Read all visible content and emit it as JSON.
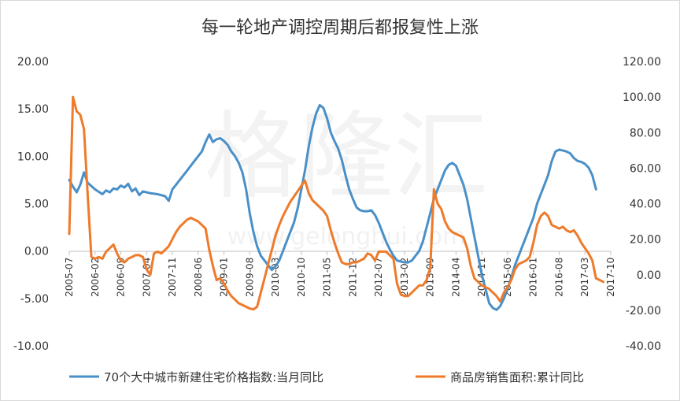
{
  "chart_data": {
    "type": "line",
    "title": "每一轮地产调控周期后都报复性上涨",
    "watermark": {
      "main": "格隆汇",
      "url": "www.gelonghui.com"
    },
    "x_ticks": [
      "2005-07",
      "2006-02",
      "2006-09",
      "2007-04",
      "2007-11",
      "2008-06",
      "2009-01",
      "2009-08",
      "2010-03",
      "2010-10",
      "2011-05",
      "2011-12",
      "2012-07",
      "2013-02",
      "2013-09",
      "2014-04",
      "2014-11",
      "2015-06",
      "2016-01",
      "2016-08",
      "2017-03",
      "2017-10"
    ],
    "y_left": {
      "min": -10,
      "max": 20,
      "step": 5,
      "ticks": [
        "20.00",
        "15.00",
        "10.00",
        "5.00",
        "0.00",
        "-5.00",
        "-10.00"
      ]
    },
    "y_right": {
      "min": -40,
      "max": 120,
      "step": 20,
      "ticks": [
        "120.00",
        "100.00",
        "80.00",
        "60.00",
        "40.00",
        "20.00",
        "0.00",
        "-20.00",
        "-40.00"
      ]
    },
    "series": [
      {
        "name": "70个大中城市新建住宅价格指数:当月同比",
        "axis": "left",
        "color": "#4a90c8",
        "points": [
          [
            0,
            7.5
          ],
          [
            1,
            6.8
          ],
          [
            2,
            6.2
          ],
          [
            3,
            7.0
          ],
          [
            4,
            8.3
          ],
          [
            5,
            7.2
          ],
          [
            7,
            6.5
          ],
          [
            9,
            6.0
          ],
          [
            10,
            6.4
          ],
          [
            11,
            6.2
          ],
          [
            12,
            6.6
          ],
          [
            13,
            6.5
          ],
          [
            14,
            6.9
          ],
          [
            15,
            6.7
          ],
          [
            16,
            7.1
          ],
          [
            17,
            6.3
          ],
          [
            18,
            6.6
          ],
          [
            19,
            5.9
          ],
          [
            20,
            6.3
          ],
          [
            22,
            6.1
          ],
          [
            24,
            6.0
          ],
          [
            26,
            5.8
          ],
          [
            27,
            5.3
          ],
          [
            28,
            6.5
          ],
          [
            30,
            7.5
          ],
          [
            32,
            8.5
          ],
          [
            34,
            9.5
          ],
          [
            36,
            10.5
          ],
          [
            37,
            11.5
          ],
          [
            38,
            12.3
          ],
          [
            39,
            11.5
          ],
          [
            40,
            11.8
          ],
          [
            41,
            11.9
          ],
          [
            42,
            11.6
          ],
          [
            43,
            11.2
          ],
          [
            44,
            10.5
          ],
          [
            45,
            10.0
          ],
          [
            46,
            9.3
          ],
          [
            47,
            8.3
          ],
          [
            48,
            6.5
          ],
          [
            49,
            4.0
          ],
          [
            50,
            2.0
          ],
          [
            51,
            0.5
          ],
          [
            52,
            -0.5
          ],
          [
            53,
            -1.0
          ],
          [
            54,
            -1.5
          ],
          [
            55,
            -2.0
          ],
          [
            56,
            -1.6
          ],
          [
            57,
            -1.0
          ],
          [
            58,
            0.0
          ],
          [
            59,
            1.0
          ],
          [
            60,
            2.0
          ],
          [
            61,
            3.0
          ],
          [
            62,
            4.5
          ],
          [
            63,
            6.5
          ],
          [
            64,
            8.5
          ],
          [
            65,
            11.0
          ],
          [
            66,
            13.0
          ],
          [
            67,
            14.5
          ],
          [
            68,
            15.4
          ],
          [
            69,
            15.1
          ],
          [
            70,
            14.0
          ],
          [
            71,
            12.5
          ],
          [
            72,
            11.6
          ],
          [
            73,
            10.8
          ],
          [
            74,
            9.6
          ],
          [
            75,
            8.0
          ],
          [
            76,
            6.5
          ],
          [
            77,
            5.5
          ],
          [
            78,
            4.6
          ],
          [
            79,
            4.3
          ],
          [
            80,
            4.2
          ],
          [
            81,
            4.2
          ],
          [
            82,
            4.3
          ],
          [
            83,
            3.8
          ],
          [
            84,
            3.0
          ],
          [
            85,
            2.0
          ],
          [
            86,
            1.0
          ],
          [
            87,
            0.2
          ],
          [
            88,
            -0.5
          ],
          [
            89,
            -1.0
          ],
          [
            90,
            -1.1
          ],
          [
            91,
            -1.2
          ],
          [
            92,
            -1.2
          ],
          [
            93,
            -1.0
          ],
          [
            94,
            -0.5
          ],
          [
            95,
            0.0
          ],
          [
            96,
            1.0
          ],
          [
            97,
            2.5
          ],
          [
            98,
            4.0
          ],
          [
            99,
            5.5
          ],
          [
            100,
            6.5
          ],
          [
            101,
            7.5
          ],
          [
            102,
            8.5
          ],
          [
            103,
            9.1
          ],
          [
            104,
            9.3
          ],
          [
            105,
            9.0
          ],
          [
            106,
            8.0
          ],
          [
            107,
            7.0
          ],
          [
            108,
            5.5
          ],
          [
            109,
            3.5
          ],
          [
            110,
            1.5
          ],
          [
            111,
            -0.5
          ],
          [
            112,
            -2.5
          ],
          [
            113,
            -4.0
          ],
          [
            114,
            -5.5
          ],
          [
            115,
            -6.0
          ],
          [
            116,
            -6.2
          ],
          [
            117,
            -5.8
          ],
          [
            118,
            -5.0
          ],
          [
            119,
            -4.0
          ],
          [
            120,
            -2.8
          ],
          [
            121,
            -1.5
          ],
          [
            122,
            -0.5
          ],
          [
            123,
            0.5
          ],
          [
            124,
            1.5
          ],
          [
            125,
            2.5
          ],
          [
            126,
            3.5
          ],
          [
            127,
            5.0
          ],
          [
            128,
            6.0
          ],
          [
            129,
            7.0
          ],
          [
            130,
            8.0
          ],
          [
            131,
            9.5
          ],
          [
            132,
            10.5
          ],
          [
            133,
            10.7
          ],
          [
            134,
            10.6
          ],
          [
            135,
            10.5
          ],
          [
            136,
            10.3
          ],
          [
            137,
            9.8
          ],
          [
            138,
            9.5
          ],
          [
            139,
            9.4
          ],
          [
            140,
            9.2
          ],
          [
            141,
            8.8
          ],
          [
            142,
            8.0
          ],
          [
            143,
            6.5
          ]
        ]
      },
      {
        "name": "商品房销售面积:累计同比",
        "axis": "right",
        "color": "#ee7a2a",
        "points": [
          [
            0,
            23
          ],
          [
            1,
            100
          ],
          [
            2,
            92
          ],
          [
            3,
            90
          ],
          [
            4,
            82
          ],
          [
            5,
            45
          ],
          [
            6,
            10
          ],
          [
            7,
            9
          ],
          [
            8,
            10
          ],
          [
            9,
            9
          ],
          [
            10,
            13
          ],
          [
            11,
            15
          ],
          [
            12,
            17
          ],
          [
            13,
            12
          ],
          [
            14,
            8
          ],
          [
            15,
            7
          ],
          [
            16,
            9
          ],
          [
            17,
            10
          ],
          [
            18,
            11
          ],
          [
            19,
            11
          ],
          [
            20,
            10
          ],
          [
            21,
            3
          ],
          [
            22,
            0
          ],
          [
            23,
            12
          ],
          [
            24,
            13
          ],
          [
            25,
            12
          ],
          [
            26,
            14
          ],
          [
            27,
            16
          ],
          [
            28,
            20
          ],
          [
            29,
            24
          ],
          [
            30,
            27
          ],
          [
            31,
            29
          ],
          [
            32,
            31
          ],
          [
            33,
            32
          ],
          [
            34,
            31
          ],
          [
            35,
            30
          ],
          [
            36,
            28
          ],
          [
            37,
            26
          ],
          [
            38,
            14
          ],
          [
            39,
            5
          ],
          [
            40,
            -3
          ],
          [
            41,
            -2
          ],
          [
            42,
            -5
          ],
          [
            43,
            -9
          ],
          [
            44,
            -12
          ],
          [
            45,
            -14
          ],
          [
            46,
            -16
          ],
          [
            47,
            -17
          ],
          [
            48,
            -18
          ],
          [
            49,
            -19
          ],
          [
            50,
            -19.5
          ],
          [
            51,
            -18
          ],
          [
            52,
            -10
          ],
          [
            53,
            -2
          ],
          [
            54,
            6
          ],
          [
            55,
            14
          ],
          [
            56,
            22
          ],
          [
            57,
            28
          ],
          [
            58,
            33
          ],
          [
            59,
            37
          ],
          [
            60,
            41
          ],
          [
            61,
            44
          ],
          [
            62,
            47
          ],
          [
            63,
            50
          ],
          [
            64,
            53
          ],
          [
            65,
            46
          ],
          [
            66,
            42
          ],
          [
            67,
            40
          ],
          [
            68,
            38
          ],
          [
            69,
            36
          ],
          [
            70,
            33
          ],
          [
            71,
            25
          ],
          [
            72,
            18
          ],
          [
            73,
            12
          ],
          [
            74,
            7
          ],
          [
            75,
            6
          ],
          [
            76,
            6
          ],
          [
            77,
            7
          ],
          [
            78,
            7
          ],
          [
            79,
            8
          ],
          [
            80,
            9
          ],
          [
            81,
            12
          ],
          [
            82,
            11
          ],
          [
            83,
            8
          ],
          [
            84,
            13
          ],
          [
            85,
            13
          ],
          [
            86,
            13
          ],
          [
            87,
            11
          ],
          [
            88,
            9
          ],
          [
            89,
            -5
          ],
          [
            90,
            -11
          ],
          [
            91,
            -12
          ],
          [
            92,
            -12
          ],
          [
            93,
            -10
          ],
          [
            94,
            -8
          ],
          [
            95,
            -6
          ],
          [
            96,
            -6
          ],
          [
            97,
            -3
          ],
          [
            98,
            4
          ],
          [
            99,
            48
          ],
          [
            100,
            40
          ],
          [
            101,
            37
          ],
          [
            102,
            30
          ],
          [
            103,
            26
          ],
          [
            104,
            24
          ],
          [
            105,
            23
          ],
          [
            106,
            22
          ],
          [
            107,
            21
          ],
          [
            108,
            15
          ],
          [
            109,
            5
          ],
          [
            110,
            -2
          ],
          [
            111,
            -4
          ],
          [
            112,
            -6
          ],
          [
            113,
            -7
          ],
          [
            114,
            -8
          ],
          [
            115,
            -10
          ],
          [
            116,
            -12
          ],
          [
            117,
            -15
          ],
          [
            118,
            -10
          ],
          [
            119,
            -7
          ],
          [
            120,
            -3
          ],
          [
            121,
            3
          ],
          [
            122,
            6
          ],
          [
            123,
            7
          ],
          [
            124,
            8
          ],
          [
            125,
            10
          ],
          [
            126,
            18
          ],
          [
            127,
            28
          ],
          [
            128,
            33
          ],
          [
            129,
            35
          ],
          [
            130,
            33
          ],
          [
            131,
            28
          ],
          [
            132,
            27
          ],
          [
            133,
            26
          ],
          [
            134,
            27
          ],
          [
            135,
            25
          ],
          [
            136,
            24
          ],
          [
            137,
            25
          ],
          [
            138,
            22
          ],
          [
            139,
            18
          ],
          [
            140,
            15
          ],
          [
            141,
            12
          ],
          [
            142,
            8
          ],
          [
            143,
            -2
          ],
          [
            144,
            -3
          ],
          [
            145,
            -4
          ]
        ]
      }
    ],
    "legend_position": "bottom"
  }
}
